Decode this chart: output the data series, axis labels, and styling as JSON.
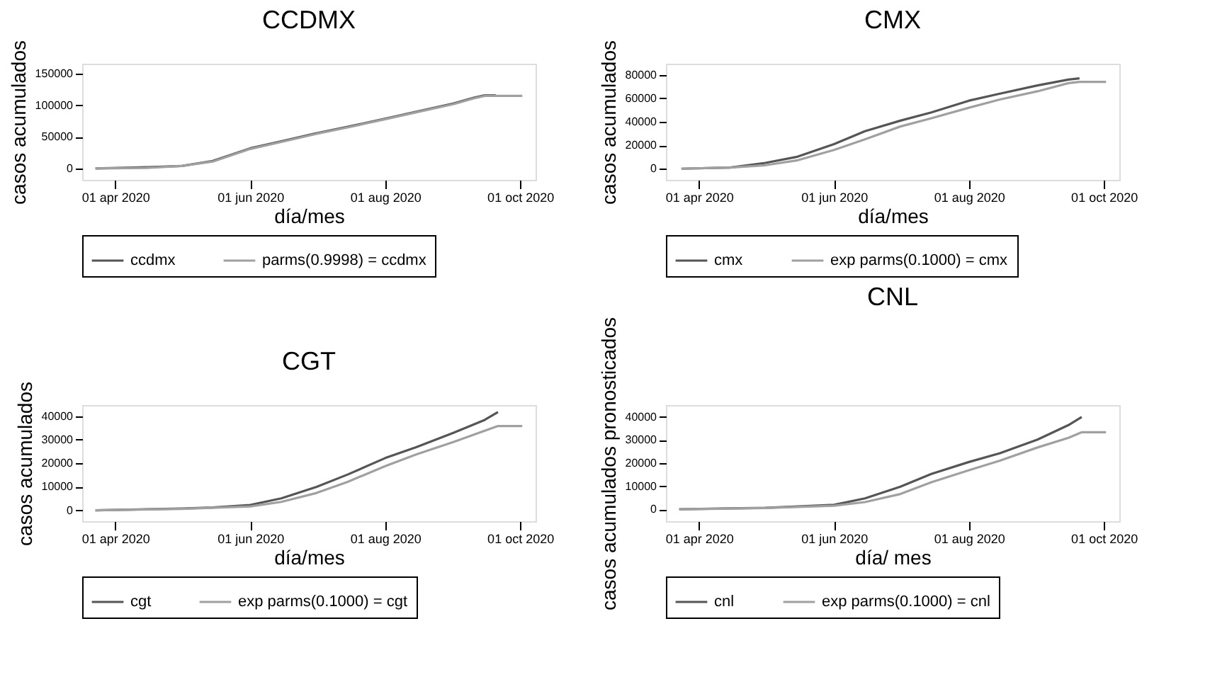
{
  "chart_data": [
    {
      "type": "line",
      "title": "CCDMX",
      "xlabel": "día/mes",
      "ylabel": "casos acumulados",
      "legend": "bottom",
      "xlim": [
        "2020-03-17",
        "2020-10-08"
      ],
      "xticks": [
        {
          "value": "2020-04-01",
          "label": "01 apr 2020"
        },
        {
          "value": "2020-06-01",
          "label": "01 jun 2020"
        },
        {
          "value": "2020-08-01",
          "label": "01 aug 2020"
        },
        {
          "value": "2020-10-01",
          "label": "01 oct 2020"
        }
      ],
      "ylim": [
        -18000,
        166000
      ],
      "yticks": [
        0,
        50000,
        100000,
        150000
      ],
      "series": [
        {
          "name": "ccdmx",
          "color": "#555555",
          "x": [
            "2020-03-23",
            "2020-04-15",
            "2020-05-01",
            "2020-05-15",
            "2020-06-01",
            "2020-06-15",
            "2020-07-01",
            "2020-07-15",
            "2020-08-01",
            "2020-08-15",
            "2020-09-01",
            "2020-09-10",
            "2020-09-15",
            "2020-09-20"
          ],
          "values": [
            0,
            2000,
            4000,
            12000,
            32000,
            43000,
            56000,
            66000,
            79000,
            90000,
            103000,
            112000,
            116000,
            116000
          ]
        },
        {
          "name": "parms(0.9998) = ccdmx",
          "color": "#a0a0a0",
          "x": [
            "2020-03-23",
            "2020-04-15",
            "2020-05-01",
            "2020-05-15",
            "2020-06-01",
            "2020-06-15",
            "2020-07-01",
            "2020-07-15",
            "2020-08-01",
            "2020-08-15",
            "2020-09-01",
            "2020-09-10",
            "2020-09-15",
            "2020-10-02"
          ],
          "values": [
            0,
            1000,
            4000,
            11000,
            31000,
            42000,
            55000,
            65000,
            78000,
            89000,
            102000,
            111000,
            115000,
            115000
          ]
        }
      ]
    },
    {
      "type": "line",
      "title": "CMX",
      "xlabel": "día/mes",
      "ylabel": "casos acumulados",
      "legend": "bottom",
      "xlim": [
        "2020-03-17",
        "2020-10-08"
      ],
      "xticks": [
        {
          "value": "2020-04-01",
          "label": "01 apr 2020"
        },
        {
          "value": "2020-06-01",
          "label": "01 jun 2020"
        },
        {
          "value": "2020-08-01",
          "label": "01 aug 2020"
        },
        {
          "value": "2020-10-01",
          "label": "01 oct 2020"
        }
      ],
      "ylim": [
        -9500,
        89500
      ],
      "yticks": [
        0,
        20000,
        40000,
        60000,
        80000
      ],
      "series": [
        {
          "name": "cmx",
          "color": "#555555",
          "x": [
            "2020-03-24",
            "2020-04-15",
            "2020-05-01",
            "2020-05-15",
            "2020-06-01",
            "2020-06-15",
            "2020-07-01",
            "2020-07-15",
            "2020-08-01",
            "2020-08-15",
            "2020-09-01",
            "2020-09-15",
            "2020-09-20"
          ],
          "values": [
            0,
            1000,
            5000,
            10000,
            21000,
            32000,
            41000,
            48000,
            58000,
            64000,
            71000,
            76000,
            77000
          ]
        },
        {
          "name": "exp parms(0.1000) = cmx",
          "color": "#a0a0a0",
          "x": [
            "2020-03-24",
            "2020-04-15",
            "2020-05-01",
            "2020-05-15",
            "2020-06-01",
            "2020-06-15",
            "2020-07-01",
            "2020-07-15",
            "2020-08-01",
            "2020-08-15",
            "2020-09-01",
            "2020-09-15",
            "2020-09-20",
            "2020-10-02"
          ],
          "values": [
            0,
            1000,
            3000,
            7000,
            16000,
            25000,
            36000,
            43000,
            52000,
            59000,
            66000,
            73000,
            74000,
            74000
          ]
        }
      ]
    },
    {
      "type": "line",
      "title": "CGT",
      "xlabel": "día/mes",
      "ylabel": "casos acumulados",
      "legend": "bottom",
      "xlim": [
        "2020-03-17",
        "2020-10-08"
      ],
      "xticks": [
        {
          "value": "2020-04-01",
          "label": "01 apr 2020"
        },
        {
          "value": "2020-06-01",
          "label": "01 jun 2020"
        },
        {
          "value": "2020-08-01",
          "label": "01 aug 2020"
        },
        {
          "value": "2020-10-01",
          "label": "01 oct 2020"
        }
      ],
      "ylim": [
        -4600,
        44700
      ],
      "yticks": [
        0,
        10000,
        20000,
        30000,
        40000
      ],
      "series": [
        {
          "name": "cgt",
          "color": "#555555",
          "x": [
            "2020-03-23",
            "2020-05-01",
            "2020-05-15",
            "2020-06-01",
            "2020-06-15",
            "2020-07-01",
            "2020-07-15",
            "2020-08-01",
            "2020-08-15",
            "2020-09-01",
            "2020-09-15",
            "2020-09-21"
          ],
          "values": [
            0,
            800,
            1200,
            2300,
            5100,
            10000,
            15200,
            22200,
            26800,
            33000,
            38400,
            41700
          ]
        },
        {
          "name": "exp parms(0.1000) = cgt",
          "color": "#a0a0a0",
          "x": [
            "2020-03-23",
            "2020-05-01",
            "2020-06-01",
            "2020-06-15",
            "2020-07-01",
            "2020-07-15",
            "2020-08-01",
            "2020-08-15",
            "2020-09-01",
            "2020-09-15",
            "2020-09-21",
            "2020-10-02"
          ],
          "values": [
            0,
            600,
            1700,
            3600,
            7400,
            12100,
            18800,
            23700,
            29100,
            33800,
            35800,
            35800
          ]
        }
      ]
    },
    {
      "type": "line",
      "title": "CNL",
      "xlabel": "día/ mes",
      "ylabel": "casos acumulados pronosticados",
      "legend": "bottom",
      "xlim": [
        "2020-03-17",
        "2020-10-08"
      ],
      "xticks": [
        {
          "value": "2020-04-01",
          "label": "01 apr 2020"
        },
        {
          "value": "2020-06-01",
          "label": "01 jun 2020"
        },
        {
          "value": "2020-08-01",
          "label": "01 aug 2020"
        },
        {
          "value": "2020-10-01",
          "label": "01 oct 2020"
        }
      ],
      "ylim": [
        -5200,
        45200
      ],
      "yticks": [
        0,
        10000,
        20000,
        30000,
        40000
      ],
      "series": [
        {
          "name": "cnl",
          "color": "#555555",
          "x": [
            "2020-03-23",
            "2020-05-01",
            "2020-06-01",
            "2020-06-15",
            "2020-07-01",
            "2020-07-15",
            "2020-08-01",
            "2020-08-15",
            "2020-09-01",
            "2020-09-15",
            "2020-09-21"
          ],
          "values": [
            0,
            600,
            1900,
            4700,
            9800,
            15300,
            20500,
            24300,
            30200,
            36500,
            40000
          ]
        },
        {
          "name": "exp parms(0.1000) = cnl",
          "color": "#a0a0a0",
          "x": [
            "2020-03-23",
            "2020-05-01",
            "2020-06-01",
            "2020-06-15",
            "2020-07-01",
            "2020-07-15",
            "2020-08-01",
            "2020-08-15",
            "2020-09-01",
            "2020-09-15",
            "2020-09-21",
            "2020-10-02"
          ],
          "values": [
            0,
            500,
            1500,
            3100,
            6600,
            11700,
            16900,
            21100,
            26800,
            31000,
            33400,
            33400
          ]
        }
      ]
    }
  ]
}
